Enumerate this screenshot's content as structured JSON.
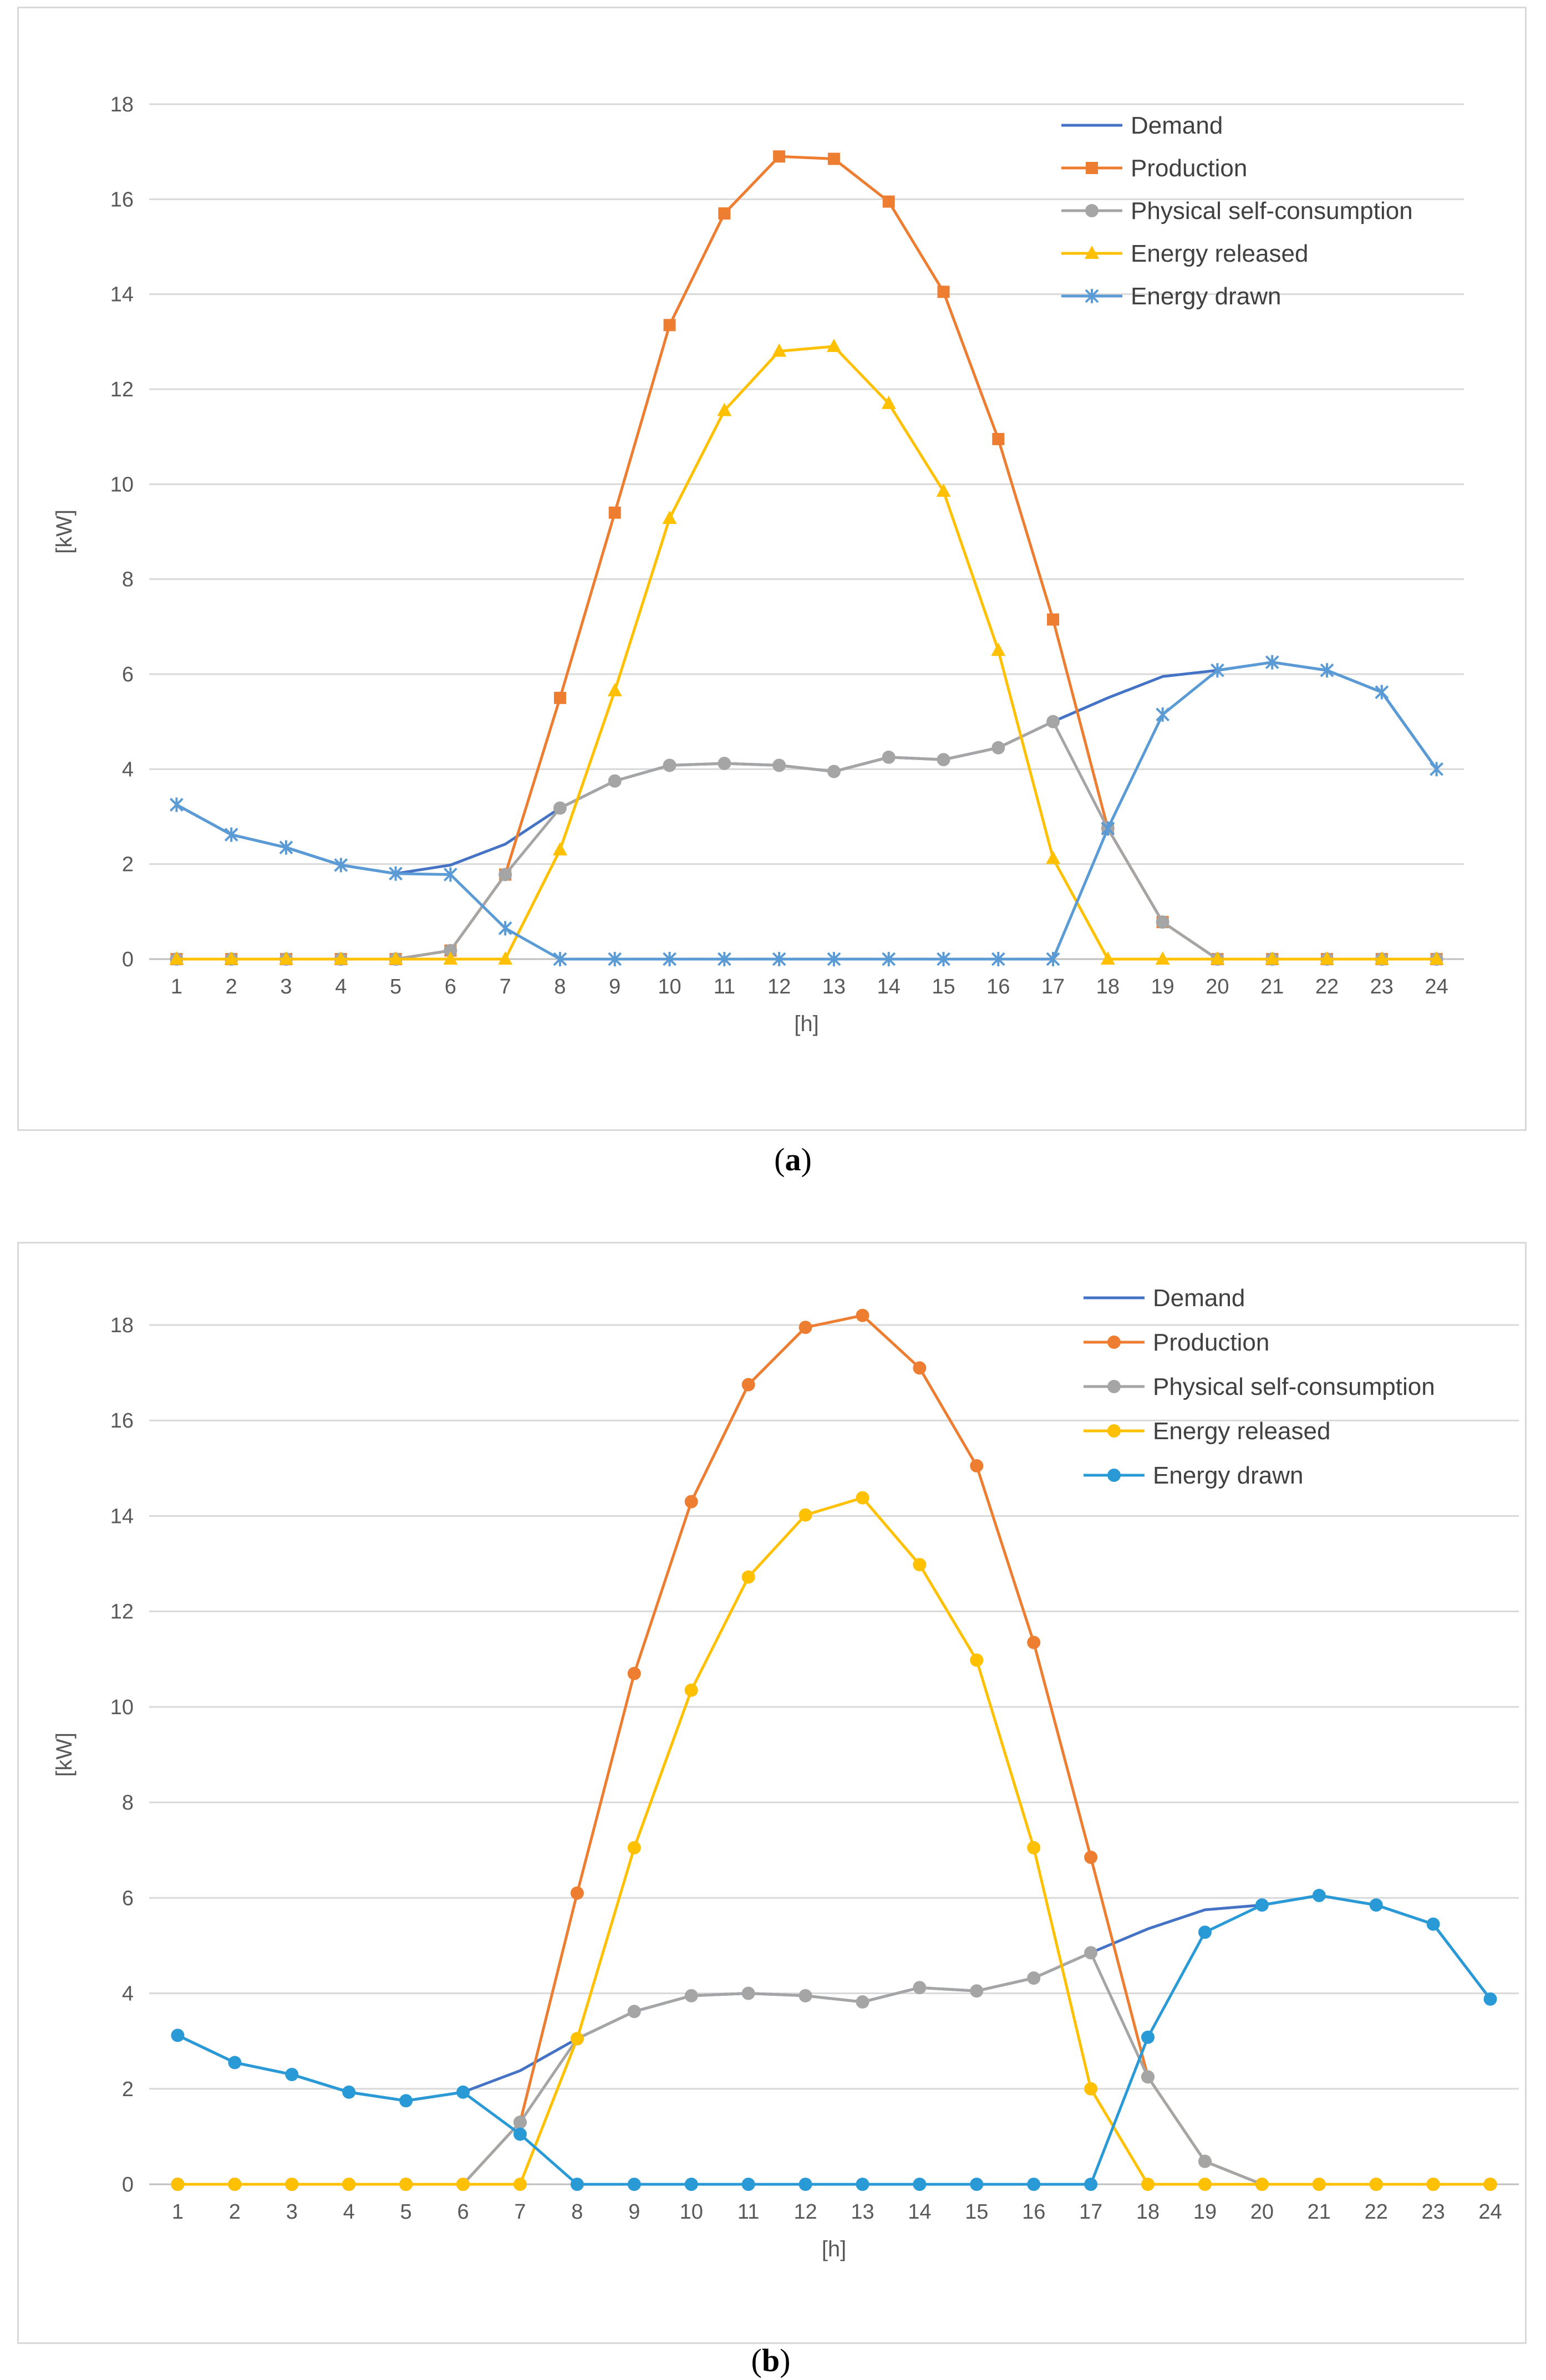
{
  "chart_data": [
    {
      "type": "line",
      "panel": "a",
      "caption": "a",
      "xlabel": "[h]",
      "ylabel": "[kW]",
      "categories": [
        1,
        2,
        3,
        4,
        5,
        6,
        7,
        8,
        9,
        10,
        11,
        12,
        13,
        14,
        15,
        16,
        17,
        18,
        19,
        20,
        21,
        22,
        23,
        24
      ],
      "ylim": [
        0,
        18
      ],
      "yticks": [
        0,
        2,
        4,
        6,
        8,
        10,
        12,
        14,
        16,
        18
      ],
      "grid": true,
      "legend_position": "top-right",
      "series": [
        {
          "name": "Demand",
          "color": "#4472c4",
          "marker": "none",
          "values": [
            3.25,
            2.62,
            2.35,
            1.98,
            1.8,
            1.98,
            2.42,
            3.18,
            3.75,
            4.08,
            4.12,
            4.08,
            3.95,
            4.25,
            4.2,
            4.45,
            5.0,
            5.5,
            5.95,
            6.08,
            6.25,
            6.08,
            5.62,
            4.0
          ]
        },
        {
          "name": "Production",
          "color": "#ed7d31",
          "marker": "square",
          "values": [
            0,
            0,
            0,
            0,
            0,
            0.18,
            1.78,
            5.5,
            9.4,
            13.35,
            15.7,
            16.9,
            16.85,
            15.95,
            14.05,
            10.95,
            7.15,
            2.75,
            0.78,
            0,
            0,
            0,
            0,
            0
          ]
        },
        {
          "name": "Physical self-consumption",
          "color": "#a5a5a5",
          "marker": "circle",
          "values": [
            0,
            0,
            0,
            0,
            0,
            0.18,
            1.78,
            3.18,
            3.75,
            4.08,
            4.12,
            4.08,
            3.95,
            4.25,
            4.2,
            4.45,
            5.0,
            2.75,
            0.78,
            0,
            0,
            0,
            0,
            0
          ]
        },
        {
          "name": "Energy released",
          "color": "#ffc000",
          "marker": "triangle",
          "values": [
            0,
            0,
            0,
            0,
            0,
            0,
            0,
            2.3,
            5.65,
            9.28,
            11.55,
            12.8,
            12.9,
            11.7,
            9.85,
            6.5,
            2.12,
            0,
            0,
            0,
            0,
            0,
            0,
            0
          ]
        },
        {
          "name": "Energy drawn",
          "color": "#5b9bd5",
          "marker": "star",
          "values": [
            3.25,
            2.62,
            2.35,
            1.98,
            1.8,
            1.78,
            0.65,
            0,
            0,
            0,
            0,
            0,
            0,
            0,
            0,
            0,
            0,
            2.75,
            5.15,
            6.08,
            6.25,
            6.08,
            5.62,
            4.0
          ]
        }
      ]
    },
    {
      "type": "line",
      "panel": "b",
      "caption": "b",
      "xlabel": "[h]",
      "ylabel": "[kW]",
      "categories": [
        1,
        2,
        3,
        4,
        5,
        6,
        7,
        8,
        9,
        10,
        11,
        12,
        13,
        14,
        15,
        16,
        17,
        18,
        19,
        20,
        21,
        22,
        23,
        24
      ],
      "ylim": [
        0,
        18
      ],
      "yticks": [
        0,
        2,
        4,
        6,
        8,
        10,
        12,
        14,
        16,
        18
      ],
      "grid": true,
      "legend_position": "top-right",
      "series": [
        {
          "name": "Demand",
          "color": "#4472c4",
          "marker": "none",
          "values": [
            3.12,
            2.55,
            2.3,
            1.93,
            1.75,
            1.93,
            2.38,
            3.05,
            3.62,
            3.95,
            4.0,
            3.95,
            3.82,
            4.12,
            4.05,
            4.32,
            4.85,
            5.35,
            5.75,
            5.85,
            6.05,
            5.85,
            5.45,
            3.88
          ]
        },
        {
          "name": "Production",
          "color": "#ed7d31",
          "marker": "circle",
          "values": [
            0,
            0,
            0,
            0,
            0,
            0,
            1.3,
            6.1,
            10.7,
            14.3,
            16.75,
            17.95,
            18.2,
            17.1,
            15.05,
            11.35,
            6.85,
            2.25,
            0.48,
            0,
            0,
            0,
            0,
            0
          ]
        },
        {
          "name": "Physical self-consumption",
          "color": "#a5a5a5",
          "marker": "circle",
          "values": [
            0,
            0,
            0,
            0,
            0,
            0,
            1.3,
            3.05,
            3.62,
            3.95,
            4.0,
            3.95,
            3.82,
            4.12,
            4.05,
            4.32,
            4.85,
            2.25,
            0.48,
            0,
            0,
            0,
            0,
            0
          ]
        },
        {
          "name": "Energy released",
          "color": "#ffc000",
          "marker": "circle",
          "values": [
            0,
            0,
            0,
            0,
            0,
            0,
            0,
            3.05,
            7.05,
            10.35,
            12.72,
            14.02,
            14.38,
            12.98,
            10.98,
            7.05,
            2.0,
            0,
            0,
            0,
            0,
            0,
            0,
            0
          ]
        },
        {
          "name": "Energy drawn",
          "color": "#2a9ad6",
          "marker": "circle",
          "values": [
            3.12,
            2.55,
            2.3,
            1.93,
            1.75,
            1.93,
            1.05,
            0,
            0,
            0,
            0,
            0,
            0,
            0,
            0,
            0,
            0,
            3.08,
            5.28,
            5.85,
            6.05,
            5.85,
            5.45,
            3.88
          ]
        }
      ]
    }
  ]
}
